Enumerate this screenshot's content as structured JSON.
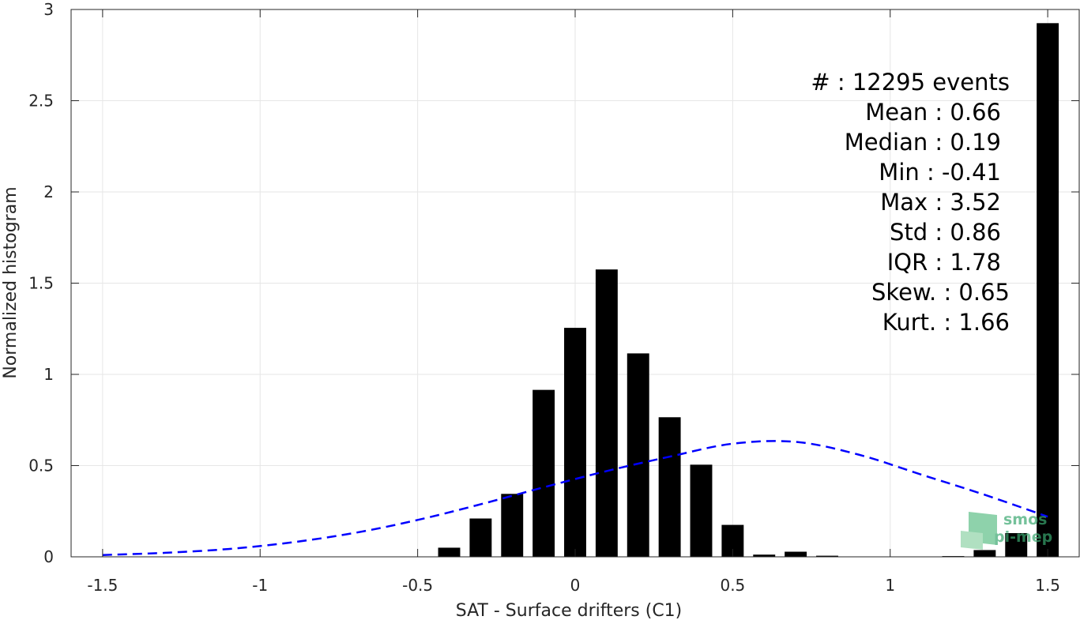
{
  "chart_data": {
    "type": "bar",
    "xlabel": "SAT - Surface drifters (C1)",
    "ylabel": "Normalized histogram",
    "xlim": [
      -1.6,
      1.6
    ],
    "ylim": [
      0,
      3
    ],
    "grid": true,
    "x_ticks": [
      -1.5,
      -1,
      -0.5,
      0,
      0.5,
      1,
      1.5
    ],
    "x_tick_labels": [
      "-1.5",
      "-1",
      "-0.5",
      "0",
      "0.5",
      "1",
      "1.5"
    ],
    "y_ticks": [
      0,
      0.5,
      1,
      1.5,
      2,
      2.5,
      3
    ],
    "y_tick_labels": [
      "0",
      "0.5",
      "1",
      "1.5",
      "2",
      "2.5",
      "3"
    ],
    "bar_width": 0.07,
    "histogram": {
      "x": [
        -0.4,
        -0.3,
        -0.2,
        -0.1,
        0.0,
        0.1,
        0.2,
        0.3,
        0.4,
        0.5,
        0.6,
        0.7,
        0.8,
        1.2,
        1.3,
        1.4,
        1.5
      ],
      "values": [
        0.05,
        0.21,
        0.345,
        0.915,
        1.255,
        1.575,
        1.115,
        0.765,
        0.505,
        0.175,
        0.012,
        0.028,
        0.006,
        0.004,
        0.037,
        0.13,
        2.925
      ],
      "color": "#000000"
    },
    "fit_curve": {
      "style": "dashed",
      "color": "#0000ff",
      "x": [
        -1.5,
        -1.3,
        -1.1,
        -0.9,
        -0.7,
        -0.5,
        -0.3,
        -0.1,
        0.1,
        0.3,
        0.5,
        0.7,
        0.9,
        1.1,
        1.3,
        1.5
      ],
      "values": [
        0.01,
        0.022,
        0.043,
        0.079,
        0.131,
        0.202,
        0.288,
        0.381,
        0.47,
        0.549,
        0.62,
        0.63,
        0.56,
        0.45,
        0.34,
        0.22
      ]
    },
    "annotations": [
      "#  : 12295 events",
      "Mean : 0.66",
      "Median : 0.19",
      "Min : -0.41",
      "Max : 3.52",
      "Std : 0.86",
      "IQR : 1.78",
      "Skew. : 0.65",
      "Kurt. : 1.66"
    ]
  },
  "logo": {
    "line1": "smos",
    "line2": "pi-mep",
    "color": "#3aa870"
  }
}
